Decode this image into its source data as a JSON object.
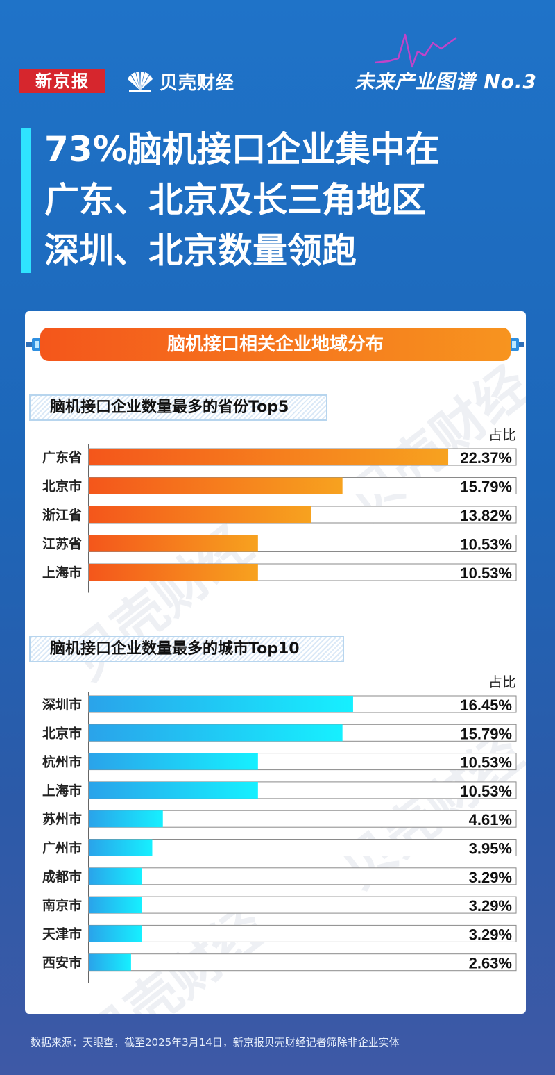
{
  "header": {
    "publisher": "新京报",
    "partner": "贝壳财经",
    "series": "未来产业图谱",
    "series_no": "No.3"
  },
  "title": {
    "lines": [
      "73%脑机接口企业集中在",
      "广东、北京及长三角地区",
      "深圳、北京数量领跑"
    ]
  },
  "card": {
    "banner": "脑机接口相关企业地域分布",
    "watermark": "贝壳财经"
  },
  "colors": {
    "orange_start": "#f4561b",
    "orange_end": "#f7a21f",
    "blue_start": "#2aa3ea",
    "blue_end": "#16f0ff",
    "accent_bar": "#2fe3ff"
  },
  "chart_data": [
    {
      "type": "bar",
      "orientation": "horizontal",
      "title": "脑机接口企业数量最多的省份Top5",
      "unit_label": "占比",
      "categories": [
        "广东省",
        "北京市",
        "浙江省",
        "江苏省",
        "上海市"
      ],
      "values": [
        22.37,
        15.79,
        13.82,
        10.53,
        10.53
      ],
      "value_labels": [
        "22.37%",
        "15.79%",
        "13.82%",
        "10.53%",
        "10.53%"
      ],
      "xlim": [
        0,
        26.6
      ]
    },
    {
      "type": "bar",
      "orientation": "horizontal",
      "title": "脑机接口企业数量最多的城市Top10",
      "unit_label": "占比",
      "categories": [
        "深圳市",
        "北京市",
        "杭州市",
        "上海市",
        "苏州市",
        "广州市",
        "成都市",
        "南京市",
        "天津市",
        "西安市"
      ],
      "values": [
        16.45,
        15.79,
        10.53,
        10.53,
        4.61,
        3.95,
        3.29,
        3.29,
        3.29,
        2.63
      ],
      "value_labels": [
        "16.45%",
        "15.79%",
        "10.53%",
        "10.53%",
        "4.61%",
        "3.95%",
        "3.29%",
        "3.29%",
        "3.29%",
        "2.63%"
      ],
      "xlim": [
        0,
        26.6
      ]
    }
  ],
  "footer": {
    "source": "数据来源：天眼查，截至2025年3月14日，新京报贝壳财经记者筛除非企业实体"
  }
}
